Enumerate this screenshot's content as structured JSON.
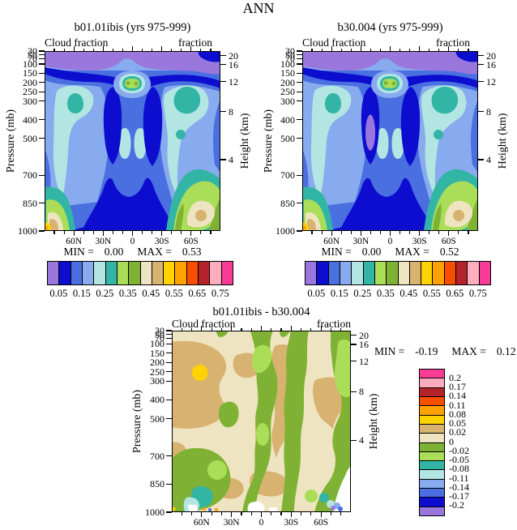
{
  "figure_title": "ANN",
  "palette": [
    "#9977dd",
    "#0d0dcf",
    "#4a6fe0",
    "#88aaee",
    "#b3e6e3",
    "#33b5a5",
    "#aade58",
    "#7fb234",
    "#eee4c1",
    "#d8b271",
    "#ffd300",
    "#ffa101",
    "#f84e00",
    "#b5232a",
    "#ffadbd",
    "#f93d96"
  ],
  "panels": {
    "a": {
      "title": "b01.01ibis (yrs 975-999)",
      "subtitle_left": "Cloud fraction",
      "subtitle_right": "fraction",
      "y_left_label": "Pressure (mb)",
      "y_right_label": "Height (km)",
      "pressure_ticks": [
        "30",
        "50",
        "70",
        "100",
        "150",
        "200",
        "250",
        "300",
        "400",
        "500",
        "700",
        "850",
        "1000"
      ],
      "height_ticks": [
        "20",
        "16",
        "12",
        "8",
        "4"
      ],
      "lat_ticks": [
        "60N",
        "30N",
        "0",
        "30S",
        "60S"
      ],
      "min_label": "MIN =",
      "min_value": "0.00",
      "max_label": "MAX =",
      "max_value": "0.53",
      "colorbar_labels": [
        "0.05",
        "0.15",
        "0.25",
        "0.35",
        "0.45",
        "0.55",
        "0.65",
        "0.75"
      ]
    },
    "b": {
      "title": "b30.004 (yrs 975-999)",
      "subtitle_left": "Cloud fraction",
      "subtitle_right": "fraction",
      "y_left_label": "Pressure (mb)",
      "y_right_label": "Height (km)",
      "pressure_ticks": [
        "30",
        "50",
        "70",
        "100",
        "150",
        "200",
        "250",
        "300",
        "400",
        "500",
        "700",
        "850",
        "1000"
      ],
      "height_ticks": [
        "20",
        "16",
        "12",
        "8",
        "4"
      ],
      "lat_ticks": [
        "60N",
        "30N",
        "0",
        "30S",
        "60S"
      ],
      "min_label": "MIN =",
      "min_value": "0.00",
      "max_label": "MAX =",
      "max_value": "0.52",
      "colorbar_labels": [
        "0.05",
        "0.15",
        "0.25",
        "0.35",
        "0.45",
        "0.55",
        "0.65",
        "0.75"
      ]
    },
    "c": {
      "title": "b01.01ibis - b30.004",
      "subtitle_left": "Cloud fraction",
      "subtitle_right": "fraction",
      "y_left_label": "Pressure (mb)",
      "y_right_label": "Height (km)",
      "pressure_ticks": [
        "30",
        "50",
        "70",
        "100",
        "150",
        "200",
        "250",
        "300",
        "400",
        "500",
        "700",
        "850",
        "1000"
      ],
      "height_ticks": [
        "20",
        "16",
        "12",
        "8",
        "4"
      ],
      "lat_ticks": [
        "60N",
        "30N",
        "0",
        "30S",
        "60S"
      ],
      "min_label": "MIN =",
      "min_value": "-0.19",
      "max_label": "MAX =",
      "max_value": "0.12",
      "colorbar_labels": [
        "0.2",
        "0.17",
        "0.14",
        "0.11",
        "0.08",
        "0.05",
        "0.02",
        "0",
        "-0.02",
        "-0.05",
        "-0.08",
        "-0.11",
        "-0.14",
        "-0.17",
        "-0.2"
      ]
    }
  },
  "chart_data": [
    {
      "type": "contour",
      "panel": "top-left",
      "title": "b01.01ibis (yrs 975-999)",
      "field": "Cloud fraction",
      "season": "ANN",
      "x_axis": {
        "tick_labels": [
          "60N",
          "30N",
          "0",
          "30S",
          "60S"
        ],
        "range_deg": [
          90,
          -90
        ]
      },
      "y_axis_left": {
        "label": "Pressure (mb)",
        "ticks": [
          30,
          50,
          70,
          100,
          150,
          200,
          250,
          300,
          400,
          500,
          700,
          850,
          1000
        ],
        "range": [
          30,
          1000
        ],
        "linear_in_pressure": true
      },
      "y_axis_right": {
        "label": "Height (km)",
        "ticks": [
          20,
          16,
          12,
          8,
          4
        ]
      },
      "stats": {
        "min": 0.0,
        "max": 0.53
      },
      "contour_levels": [
        0.05,
        0.1,
        0.15,
        0.2,
        0.25,
        0.3,
        0.35,
        0.4,
        0.45,
        0.5,
        0.55,
        0.6,
        0.65,
        0.7,
        0.75
      ],
      "colorbar_tick_labels": [
        0.05,
        0.15,
        0.25,
        0.35,
        0.45,
        0.55,
        0.65,
        0.75
      ],
      "colorbar_colors_low_to_high": [
        "#9977dd",
        "#0d0dcf",
        "#4a6fe0",
        "#88aaee",
        "#b3e6e3",
        "#33b5a5",
        "#aade58",
        "#7fb234",
        "#eee4c1",
        "#d8b271",
        "#ffd300",
        "#ffa101",
        "#f84e00",
        "#b5232a",
        "#ffadbd",
        "#f93d96"
      ],
      "features": [
        "cloud fraction < 0.05 (purple) everywhere above ~150 mb",
        "tropical upper-troposphere maximum ~0.35-0.40 centered near 200-250 mb at the equator",
        "deep minima < 0.10 (dark blue) in the subtropics ~10-25N and ~10-25S from ~300 mb to the surface",
        "mid-latitude values 0.20-0.30 (pale cyan/teal) near 45-60N and 45-60S at 250-450 mb",
        "boundary-layer maxima 0.45-0.55 near the surface at high latitudes, strongest ~60-80S"
      ]
    },
    {
      "type": "contour",
      "panel": "top-right",
      "title": "b30.004 (yrs 975-999)",
      "field": "Cloud fraction",
      "season": "ANN",
      "x_axis": {
        "tick_labels": [
          "60N",
          "30N",
          "0",
          "30S",
          "60S"
        ],
        "range_deg": [
          90,
          -90
        ]
      },
      "y_axis_left": {
        "label": "Pressure (mb)",
        "ticks": [
          30,
          50,
          70,
          100,
          150,
          200,
          250,
          300,
          400,
          500,
          700,
          850,
          1000
        ],
        "range": [
          30,
          1000
        ],
        "linear_in_pressure": true
      },
      "y_axis_right": {
        "label": "Height (km)",
        "ticks": [
          20,
          16,
          12,
          8,
          4
        ]
      },
      "stats": {
        "min": 0.0,
        "max": 0.52
      },
      "contour_levels": [
        0.05,
        0.1,
        0.15,
        0.2,
        0.25,
        0.3,
        0.35,
        0.4,
        0.45,
        0.5,
        0.55,
        0.6,
        0.65,
        0.7,
        0.75
      ],
      "colorbar_tick_labels": [
        0.05,
        0.15,
        0.25,
        0.35,
        0.45,
        0.55,
        0.65,
        0.75
      ],
      "colorbar_colors_low_to_high": [
        "#9977dd",
        "#0d0dcf",
        "#4a6fe0",
        "#88aaee",
        "#b3e6e3",
        "#33b5a5",
        "#aade58",
        "#7fb234",
        "#eee4c1",
        "#d8b271",
        "#ffd300",
        "#ffa101",
        "#f84e00",
        "#b5232a",
        "#ffadbd",
        "#f93d96"
      ],
      "features": [
        "pattern nearly identical to b01.01ibis",
        "tropical upper-troposphere maximum ~0.35-0.40 near 200-250 mb at the equator",
        "subtropical dry columns < 0.10 with a small < 0.05 (purple) core near 15N at 400-650 mb",
        "surface cloud maxima ~0.45-0.52 at 60N and 60-80S"
      ]
    },
    {
      "type": "contour",
      "panel": "bottom-difference",
      "title": "b01.01ibis - b30.004",
      "field": "Cloud fraction difference",
      "season": "ANN",
      "x_axis": {
        "tick_labels": [
          "60N",
          "30N",
          "0",
          "30S",
          "60S"
        ],
        "range_deg": [
          90,
          -90
        ]
      },
      "y_axis_left": {
        "label": "Pressure (mb)",
        "ticks": [
          30,
          50,
          70,
          100,
          150,
          200,
          250,
          300,
          400,
          500,
          700,
          850,
          1000
        ],
        "range": [
          30,
          1000
        ],
        "linear_in_pressure": true
      },
      "y_axis_right": {
        "label": "Height (km)",
        "ticks": [
          20,
          16,
          12,
          8,
          4
        ]
      },
      "stats": {
        "min": -0.19,
        "max": 0.12
      },
      "contour_levels": [
        -0.2,
        -0.17,
        -0.14,
        -0.11,
        -0.08,
        -0.05,
        -0.02,
        0,
        0.02,
        0.05,
        0.08,
        0.11,
        0.14,
        0.17,
        0.2
      ],
      "colorbar_tick_labels": [
        0.2,
        0.17,
        0.14,
        0.11,
        0.08,
        0.05,
        0.02,
        0,
        -0.02,
        -0.05,
        -0.08,
        -0.11,
        -0.14,
        -0.17,
        -0.2
      ],
      "colorbar_colors_top_to_bottom": [
        "#f93d96",
        "#ffadbd",
        "#b5232a",
        "#f84e00",
        "#ffa101",
        "#ffd300",
        "#d8b271",
        "#eee4c1",
        "#7fb234",
        "#aade58",
        "#33b5a5",
        "#b3e6e3",
        "#88aaee",
        "#4a6fe0",
        "#0d0dcf",
        "#9977dd"
      ],
      "features": [
        "differences mostly within +/-0.05 (beige/tan positive vs olive-green negative)",
        "positive 0.02-0.05 (tan) over NH high latitudes 100-500 mb, ~25-35N 150-300 mb, ~15-25S mid-levels, and ~55-70S 250-550 mb",
        "positive maximum 0.05-0.08 (yellow) near 65N at ~250 mb",
        "negative bands -0.02 to -0.05 (green) near the equator, ~45-55S, and along the SH polar edge",
        "strong negative spots down to -0.19 (teal/blue/purple) near the surface at ~60N and ~70-85S"
      ]
    }
  ]
}
